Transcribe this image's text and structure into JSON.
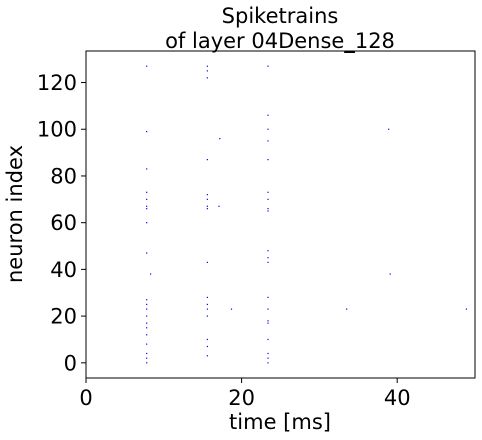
{
  "chart_data": {
    "type": "scatter",
    "title": [
      "Spiketrains",
      "of layer 04Dense_128"
    ],
    "xlabel": "time [ms]",
    "ylabel": "neuron index",
    "xlim": [
      0,
      50
    ],
    "ylim": [
      -6.5,
      133.5
    ],
    "xticks": [
      0,
      20,
      40
    ],
    "yticks": [
      0,
      20,
      40,
      60,
      80,
      100,
      120
    ],
    "grid": false,
    "marker_color": "#0000ff",
    "points": [
      [
        7.8,
        0
      ],
      [
        7.8,
        2
      ],
      [
        7.8,
        4
      ],
      [
        7.8,
        8
      ],
      [
        7.8,
        12
      ],
      [
        7.8,
        15
      ],
      [
        7.8,
        17
      ],
      [
        7.8,
        20
      ],
      [
        7.8,
        23
      ],
      [
        7.8,
        25
      ],
      [
        7.8,
        27
      ],
      [
        7.8,
        47
      ],
      [
        7.8,
        60
      ],
      [
        7.8,
        66
      ],
      [
        7.8,
        67
      ],
      [
        7.8,
        70
      ],
      [
        7.8,
        73
      ],
      [
        7.8,
        83
      ],
      [
        7.8,
        99
      ],
      [
        7.8,
        127
      ],
      [
        8.3,
        38
      ],
      [
        15.6,
        3
      ],
      [
        15.6,
        7
      ],
      [
        15.6,
        10
      ],
      [
        15.6,
        20
      ],
      [
        15.6,
        23
      ],
      [
        15.6,
        25
      ],
      [
        15.6,
        28
      ],
      [
        15.6,
        43
      ],
      [
        15.6,
        66
      ],
      [
        15.6,
        67
      ],
      [
        15.6,
        70
      ],
      [
        15.6,
        72
      ],
      [
        15.6,
        87
      ],
      [
        15.6,
        122
      ],
      [
        15.6,
        125
      ],
      [
        15.6,
        127
      ],
      [
        17.1,
        67
      ],
      [
        17.2,
        96
      ],
      [
        18.7,
        23
      ],
      [
        23.4,
        0
      ],
      [
        23.4,
        2
      ],
      [
        23.4,
        4
      ],
      [
        23.4,
        10
      ],
      [
        23.4,
        17
      ],
      [
        23.4,
        18
      ],
      [
        23.4,
        23
      ],
      [
        23.4,
        28
      ],
      [
        23.4,
        43
      ],
      [
        23.4,
        45
      ],
      [
        23.4,
        48
      ],
      [
        23.4,
        65
      ],
      [
        23.4,
        66
      ],
      [
        23.4,
        70
      ],
      [
        23.4,
        73
      ],
      [
        23.4,
        87
      ],
      [
        23.4,
        95
      ],
      [
        23.4,
        100
      ],
      [
        23.4,
        106
      ],
      [
        23.4,
        127
      ],
      [
        33.5,
        23
      ],
      [
        38.9,
        100
      ],
      [
        39.1,
        38
      ],
      [
        48.9,
        23
      ]
    ]
  }
}
